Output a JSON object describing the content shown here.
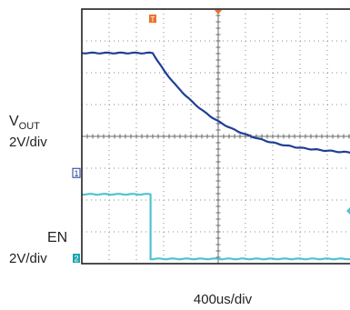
{
  "chart_data": {
    "type": "line",
    "title": "",
    "xlabel": "400us/div",
    "x_divisions": 10,
    "y_divisions": 8,
    "grid": true,
    "trigger_marker": {
      "label": "T",
      "color": "#e8732a",
      "x_div": 5
    },
    "series": [
      {
        "name": "VOUT",
        "channel_marker": "1",
        "scale_label": "2V/div",
        "label_main": "V",
        "label_sub": "OUT",
        "color": "#1f3f96",
        "ground_div": 2.85,
        "points_div": [
          [
            0,
            6.62
          ],
          [
            2.6,
            6.62
          ],
          [
            3.0,
            6.08
          ],
          [
            3.5,
            5.55
          ],
          [
            4.0,
            5.12
          ],
          [
            4.5,
            4.76
          ],
          [
            5.0,
            4.47
          ],
          [
            5.5,
            4.24
          ],
          [
            6.0,
            4.06
          ],
          [
            6.5,
            3.92
          ],
          [
            7.0,
            3.8
          ],
          [
            7.5,
            3.71
          ],
          [
            8.0,
            3.64
          ],
          [
            8.5,
            3.59
          ],
          [
            9.0,
            3.55
          ],
          [
            9.5,
            3.51
          ],
          [
            10,
            3.49
          ]
        ]
      },
      {
        "name": "EN",
        "channel_marker": "2",
        "scale_label": "2V/div",
        "label_main": "EN",
        "label_sub": "",
        "color": "#4fc3cf",
        "ground_div": 0.17,
        "points_div": [
          [
            0,
            2.18
          ],
          [
            2.52,
            2.18
          ],
          [
            2.52,
            0.15
          ],
          [
            10,
            0.15
          ]
        ]
      }
    ]
  }
}
